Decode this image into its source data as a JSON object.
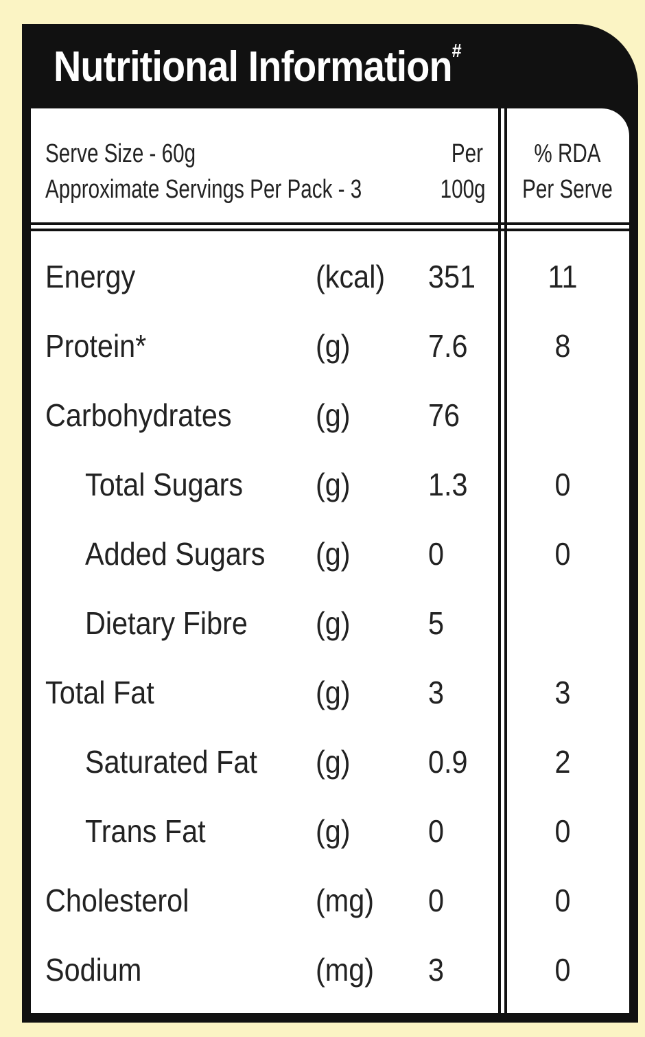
{
  "header": {
    "title": "Nutritional Information",
    "title_mark": "#"
  },
  "table": {
    "serve_size": "Serve Size - 60g",
    "servings": "Approximate Servings Per Pack - 3",
    "columns": [
      [
        "Per",
        "100g"
      ],
      [
        "% RDA",
        "Per Serve"
      ]
    ],
    "rows": [
      {
        "name": "Energy",
        "unit": "(kcal)",
        "per_100g": 351,
        "rda": 11
      },
      {
        "name": "Protein*",
        "unit": "(g)",
        "per_100g": 7.6,
        "rda": 8
      },
      {
        "name": "Carbohydrates",
        "unit": "(g)",
        "per_100g": 76,
        "rda": null,
        "children": [
          {
            "name": "Total Sugars",
            "unit": "(g)",
            "per_100g": 1.3,
            "rda": 0
          },
          {
            "name": "Added Sugars",
            "unit": "(g)",
            "per_100g": 0,
            "rda": 0
          },
          {
            "name": "Dietary Fibre",
            "unit": "(g)",
            "per_100g": 5,
            "rda": null
          }
        ]
      },
      {
        "name": "Total Fat",
        "unit": "(g)",
        "per_100g": 3,
        "rda": 3,
        "children": [
          {
            "name": "Saturated Fat",
            "unit": "(g)",
            "per_100g": 0.9,
            "rda": 2
          },
          {
            "name": "Trans Fat",
            "unit": "(g)",
            "per_100g": 0,
            "rda": 0
          }
        ]
      },
      {
        "name": "Cholesterol",
        "unit": "(mg)",
        "per_100g": 0,
        "rda": 0
      },
      {
        "name": "Sodium",
        "unit": "(mg)",
        "per_100g": 3,
        "rda": 0
      }
    ]
  }
}
